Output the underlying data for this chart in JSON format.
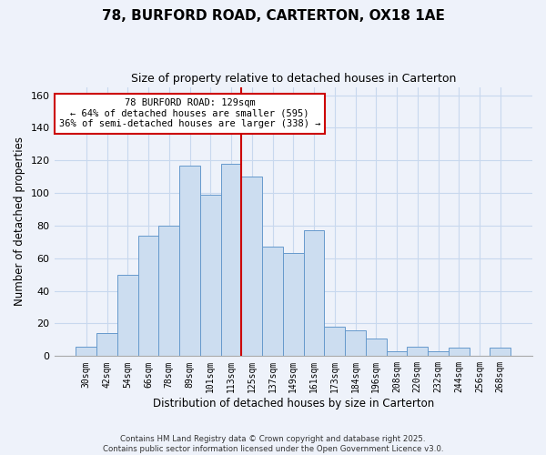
{
  "title": "78, BURFORD ROAD, CARTERTON, OX18 1AE",
  "subtitle": "Size of property relative to detached houses in Carterton",
  "xlabel": "Distribution of detached houses by size in Carterton",
  "ylabel": "Number of detached properties",
  "bar_labels": [
    "30sqm",
    "42sqm",
    "54sqm",
    "66sqm",
    "78sqm",
    "89sqm",
    "101sqm",
    "113sqm",
    "125sqm",
    "137sqm",
    "149sqm",
    "161sqm",
    "173sqm",
    "184sqm",
    "196sqm",
    "208sqm",
    "220sqm",
    "232sqm",
    "244sqm",
    "256sqm",
    "268sqm"
  ],
  "bar_values": [
    6,
    14,
    50,
    74,
    80,
    117,
    99,
    118,
    110,
    67,
    63,
    77,
    18,
    16,
    11,
    3,
    6,
    3,
    5,
    0,
    5
  ],
  "bar_color": "#ccddf0",
  "bar_edge_color": "#6699cc",
  "vline_index": 8,
  "vline_color": "#cc0000",
  "annotation_line1": "78 BURFORD ROAD: 129sqm",
  "annotation_line2": "← 64% of detached houses are smaller (595)",
  "annotation_line3": "36% of semi-detached houses are larger (338) →",
  "annotation_box_color": "#ffffff",
  "annotation_border_color": "#cc0000",
  "ylim": [
    0,
    165
  ],
  "yticks": [
    0,
    20,
    40,
    60,
    80,
    100,
    120,
    140,
    160
  ],
  "background_color": "#eef2fa",
  "grid_color": "#c8d8ee",
  "footer_line1": "Contains HM Land Registry data © Crown copyright and database right 2025.",
  "footer_line2": "Contains public sector information licensed under the Open Government Licence v3.0."
}
